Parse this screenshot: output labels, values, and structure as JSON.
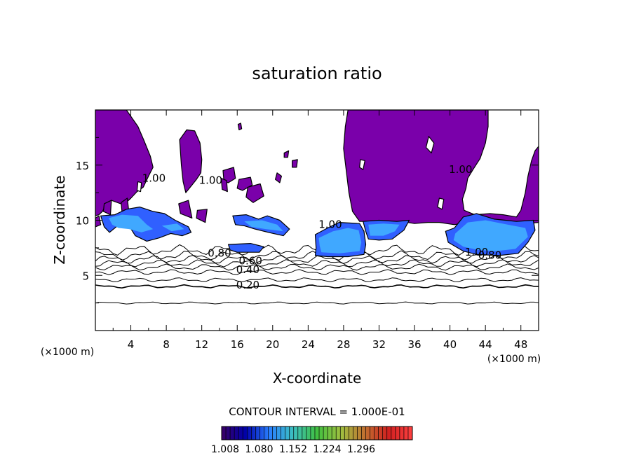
{
  "chart_data": {
    "type": "heatmap",
    "title": "saturation ratio",
    "xlabel": "X-coordinate",
    "ylabel": "Z-coordinate",
    "x_unit_left": "(×1000 m)",
    "x_unit_right": "(×1000 m)",
    "xlim": [
      0,
      50
    ],
    "ylim": [
      0,
      20
    ],
    "x_ticks": [
      4,
      8,
      12,
      16,
      20,
      24,
      28,
      32,
      36,
      40,
      44,
      48
    ],
    "y_ticks": [
      5,
      10,
      15
    ],
    "contour_interval_text": "CONTOUR INTERVAL = 1.000E-01",
    "colorbar": {
      "ticks": [
        "1.008",
        "1.080",
        "1.152",
        "1.224",
        "1.296"
      ],
      "colors": [
        "#3a0066",
        "#0000aa",
        "#2a7fff",
        "#3cc0c0",
        "#40c040",
        "#a0c040",
        "#c07030",
        "#d02020",
        "#ff4040"
      ]
    },
    "colors": {
      "supersaturated_region": "#7a00aa",
      "blue_patch": "#3060ff",
      "light_blue_patch": "#40a8ff"
    },
    "contour_labels": [
      {
        "text": "1.00",
        "x": 6.6,
        "y": 13.5
      },
      {
        "text": "1.00",
        "x": 13.0,
        "y": 13.3
      },
      {
        "text": "1.00",
        "x": 26.5,
        "y": 9.3
      },
      {
        "text": "1.00",
        "x": 41.2,
        "y": 14.3
      },
      {
        "text": "1.00",
        "x": 43.0,
        "y": 6.8
      },
      {
        "text": "0.80",
        "x": 14.0,
        "y": 6.7
      },
      {
        "text": "0.80",
        "x": 44.5,
        "y": 6.5
      },
      {
        "text": "0.60",
        "x": 17.5,
        "y": 6.0
      },
      {
        "text": "0.40",
        "x": 17.2,
        "y": 5.2
      },
      {
        "text": "0.20",
        "x": 17.2,
        "y": 3.8
      }
    ],
    "contour_lines": [
      {
        "level": 0.1,
        "y": 2.5
      },
      {
        "level": 0.2,
        "y": 4.0
      },
      {
        "level": 0.3,
        "y": 4.6
      },
      {
        "level": 0.4,
        "y": 5.3
      },
      {
        "level": 0.5,
        "y": 5.75
      },
      {
        "level": 0.6,
        "y": 6.1
      },
      {
        "level": 0.7,
        "y": 6.45
      },
      {
        "level": 0.8,
        "y": 6.8
      },
      {
        "level": 0.9,
        "y": 7.3
      }
    ],
    "purple_regions": [
      [
        [
          0,
          20
        ],
        [
          3.5,
          20
        ],
        [
          4.8,
          18.5
        ],
        [
          5.5,
          17.2
        ],
        [
          6.2,
          15.8
        ],
        [
          6.5,
          14.8
        ],
        [
          6.0,
          14.0
        ],
        [
          5.4,
          13.0
        ],
        [
          4.7,
          12.6
        ],
        [
          4.0,
          12.0
        ],
        [
          3.2,
          11.4
        ],
        [
          2.5,
          11.6
        ],
        [
          1.8,
          11.8
        ],
        [
          1.2,
          11.4
        ],
        [
          0.8,
          10.8
        ],
        [
          0.4,
          10.5
        ],
        [
          0,
          10.4
        ]
      ],
      [
        [
          9.5,
          17.3
        ],
        [
          10.3,
          18.2
        ],
        [
          11.2,
          18.1
        ],
        [
          11.8,
          17.0
        ],
        [
          12.0,
          15.5
        ],
        [
          11.9,
          14.3
        ],
        [
          11.4,
          13.7
        ],
        [
          10.8,
          13.1
        ],
        [
          10.2,
          12.5
        ],
        [
          9.9,
          13.5
        ],
        [
          9.7,
          15.0
        ]
      ],
      [
        [
          28.5,
          20
        ],
        [
          44.3,
          20
        ],
        [
          44.3,
          18.5
        ],
        [
          44.0,
          17.0
        ],
        [
          43.4,
          15.6
        ],
        [
          42.6,
          14.6
        ],
        [
          42.0,
          13.8
        ],
        [
          41.8,
          12.9
        ],
        [
          41.4,
          11.9
        ],
        [
          41.6,
          10.9
        ],
        [
          42.8,
          10.5
        ],
        [
          44.5,
          10.6
        ],
        [
          46.0,
          10.5
        ],
        [
          47.5,
          10.3
        ],
        [
          48.0,
          10.9
        ],
        [
          48.5,
          12.5
        ],
        [
          48.8,
          14.0
        ],
        [
          49.2,
          15.4
        ],
        [
          49.6,
          16.3
        ],
        [
          50,
          16.7
        ],
        [
          50,
          9.8
        ],
        [
          47.5,
          9.6
        ],
        [
          45.0,
          10.0
        ],
        [
          42.5,
          9.9
        ],
        [
          40.5,
          9.6
        ],
        [
          38.8,
          9.8
        ],
        [
          37.5,
          9.8
        ],
        [
          36.0,
          9.7
        ],
        [
          34.5,
          9.9
        ],
        [
          33.0,
          9.7
        ],
        [
          31.0,
          9.9
        ],
        [
          29.8,
          9.9
        ],
        [
          29.0,
          10.8
        ],
        [
          28.6,
          12.5
        ],
        [
          28.3,
          14.5
        ],
        [
          28.0,
          16.5
        ],
        [
          28.2,
          18.5
        ]
      ],
      [
        [
          16.1,
          18.7
        ],
        [
          16.4,
          18.8
        ],
        [
          16.5,
          18.3
        ],
        [
          16.2,
          18.2
        ]
      ],
      [
        [
          14.4,
          14.5
        ],
        [
          15.6,
          14.8
        ],
        [
          15.8,
          13.8
        ],
        [
          15.0,
          13.4
        ],
        [
          14.5,
          13.5
        ]
      ],
      [
        [
          14.2,
          13.8
        ],
        [
          14.8,
          13.6
        ],
        [
          14.9,
          12.6
        ],
        [
          14.3,
          12.8
        ]
      ],
      [
        [
          16.2,
          13.7
        ],
        [
          17.5,
          13.9
        ],
        [
          17.7,
          13.2
        ],
        [
          16.6,
          12.7
        ],
        [
          16.0,
          12.9
        ]
      ],
      [
        [
          17.2,
          13.0
        ],
        [
          18.6,
          13.3
        ],
        [
          19.0,
          12.2
        ],
        [
          17.8,
          11.6
        ],
        [
          17.0,
          12.1
        ]
      ],
      [
        [
          20.5,
          14.3
        ],
        [
          21.0,
          14.0
        ],
        [
          20.8,
          13.4
        ],
        [
          20.3,
          13.7
        ]
      ],
      [
        [
          22.2,
          15.4
        ],
        [
          22.8,
          15.5
        ],
        [
          22.7,
          14.8
        ],
        [
          22.2,
          14.8
        ]
      ],
      [
        [
          21.3,
          16.1
        ],
        [
          21.8,
          16.3
        ],
        [
          21.7,
          15.7
        ],
        [
          21.3,
          15.7
        ]
      ],
      [
        [
          1.0,
          11.5
        ],
        [
          1.8,
          11.8
        ],
        [
          1.7,
          10.5
        ],
        [
          0.9,
          10.8
        ]
      ],
      [
        [
          2.9,
          11.6
        ],
        [
          3.6,
          12.0
        ],
        [
          3.8,
          10.6
        ],
        [
          3.0,
          10.8
        ]
      ],
      [
        [
          9.4,
          11.5
        ],
        [
          10.5,
          11.8
        ],
        [
          10.9,
          10.2
        ],
        [
          9.6,
          10.6
        ]
      ],
      [
        [
          11.5,
          10.9
        ],
        [
          12.6,
          11.0
        ],
        [
          12.4,
          9.8
        ],
        [
          11.4,
          10.2
        ]
      ],
      [
        [
          0,
          10.2
        ],
        [
          0.4,
          10.4
        ],
        [
          0.6,
          9.6
        ],
        [
          0,
          9.4
        ]
      ]
    ],
    "white_holes": [
      [
        [
          37.6,
          17.6
        ],
        [
          38.2,
          17.0
        ],
        [
          37.9,
          16.1
        ],
        [
          37.3,
          16.6
        ]
      ],
      [
        [
          29.9,
          15.5
        ],
        [
          30.4,
          15.4
        ],
        [
          30.2,
          14.6
        ],
        [
          29.8,
          14.8
        ]
      ],
      [
        [
          4.8,
          13.5
        ],
        [
          5.2,
          13.4
        ],
        [
          5.1,
          12.6
        ],
        [
          4.7,
          12.7
        ]
      ],
      [
        [
          38.8,
          12.0
        ],
        [
          39.3,
          11.9
        ],
        [
          39.1,
          11.0
        ],
        [
          38.6,
          11.2
        ]
      ]
    ],
    "blue_regions": [
      [
        [
          0.6,
          10.4
        ],
        [
          2.2,
          10.5
        ],
        [
          3.5,
          11.0
        ],
        [
          5.0,
          11.2
        ],
        [
          6.5,
          10.8
        ],
        [
          7.8,
          10.6
        ],
        [
          9.0,
          10.0
        ],
        [
          10.5,
          9.4
        ],
        [
          10.8,
          8.9
        ],
        [
          9.8,
          8.6
        ],
        [
          8.5,
          8.8
        ],
        [
          7.2,
          8.4
        ],
        [
          5.8,
          8.1
        ],
        [
          4.5,
          8.6
        ],
        [
          3.8,
          9.5
        ],
        [
          2.5,
          9.5
        ],
        [
          1.6,
          8.9
        ],
        [
          1.0,
          9.4
        ]
      ],
      [
        [
          15.0,
          7.8
        ],
        [
          17.5,
          7.9
        ],
        [
          19.0,
          7.6
        ],
        [
          18.5,
          7.1
        ],
        [
          16.0,
          7.1
        ],
        [
          15.2,
          7.3
        ]
      ],
      [
        [
          15.5,
          10.4
        ],
        [
          17.0,
          10.5
        ],
        [
          18.4,
          10.1
        ],
        [
          19.4,
          10.4
        ],
        [
          20.8,
          10.0
        ],
        [
          21.9,
          9.2
        ],
        [
          21.2,
          8.6
        ],
        [
          19.5,
          8.9
        ],
        [
          18.0,
          9.2
        ],
        [
          16.8,
          9.5
        ],
        [
          15.8,
          9.6
        ]
      ],
      [
        [
          24.8,
          8.7
        ],
        [
          26.2,
          9.3
        ],
        [
          27.5,
          9.8
        ],
        [
          29.8,
          9.7
        ],
        [
          30.3,
          9.0
        ],
        [
          30.5,
          7.8
        ],
        [
          30.3,
          6.9
        ],
        [
          28.5,
          6.7
        ],
        [
          26.2,
          6.7
        ],
        [
          24.8,
          6.8
        ],
        [
          24.9,
          7.5
        ]
      ],
      [
        [
          30.2,
          9.9
        ],
        [
          32.0,
          10.0
        ],
        [
          34.0,
          9.9
        ],
        [
          35.4,
          10.0
        ],
        [
          34.8,
          9.1
        ],
        [
          33.5,
          8.3
        ],
        [
          32.0,
          8.2
        ],
        [
          30.8,
          8.3
        ],
        [
          30.5,
          9.0
        ]
      ],
      [
        [
          39.5,
          9.0
        ],
        [
          40.5,
          9.3
        ],
        [
          41.5,
          10.3
        ],
        [
          43.0,
          10.6
        ],
        [
          45.0,
          10.1
        ],
        [
          47.5,
          9.9
        ],
        [
          49.4,
          10.0
        ],
        [
          49.6,
          9.1
        ],
        [
          48.8,
          8.0
        ],
        [
          47.7,
          7.0
        ],
        [
          45.5,
          6.8
        ],
        [
          43.0,
          6.9
        ],
        [
          41.5,
          7.2
        ],
        [
          39.8,
          8.0
        ]
      ]
    ],
    "light_blue_regions": [
      [
        [
          1.5,
          10.2
        ],
        [
          3.0,
          10.5
        ],
        [
          4.8,
          10.4
        ],
        [
          5.8,
          9.6
        ],
        [
          6.5,
          9.2
        ],
        [
          5.2,
          8.9
        ],
        [
          3.8,
          9.2
        ],
        [
          2.6,
          9.3
        ],
        [
          1.9,
          9.6
        ]
      ],
      [
        [
          7.5,
          9.5
        ],
        [
          9.2,
          9.7
        ],
        [
          10.0,
          9.2
        ],
        [
          8.6,
          9.0
        ]
      ],
      [
        [
          16.8,
          9.9
        ],
        [
          18.8,
          10.0
        ],
        [
          20.5,
          9.6
        ],
        [
          21.2,
          9.0
        ],
        [
          19.2,
          9.2
        ],
        [
          17.6,
          9.4
        ]
      ],
      [
        [
          25.2,
          8.4
        ],
        [
          26.8,
          9.0
        ],
        [
          28.5,
          9.3
        ],
        [
          29.7,
          9.1
        ],
        [
          30.0,
          8.0
        ],
        [
          29.8,
          7.2
        ],
        [
          27.5,
          7.0
        ],
        [
          25.5,
          7.1
        ],
        [
          25.3,
          7.7
        ]
      ],
      [
        [
          30.8,
          9.6
        ],
        [
          32.5,
          9.7
        ],
        [
          34.3,
          9.6
        ],
        [
          33.8,
          9.0
        ],
        [
          32.5,
          8.6
        ],
        [
          31.0,
          8.6
        ]
      ],
      [
        [
          40.6,
          8.8
        ],
        [
          42.0,
          9.8
        ],
        [
          44.0,
          10.0
        ],
        [
          46.5,
          9.6
        ],
        [
          48.5,
          9.3
        ],
        [
          48.8,
          8.5
        ],
        [
          47.4,
          7.4
        ],
        [
          45.2,
          7.2
        ],
        [
          43.2,
          7.3
        ],
        [
          41.5,
          7.6
        ],
        [
          40.4,
          8.2
        ]
      ]
    ]
  }
}
